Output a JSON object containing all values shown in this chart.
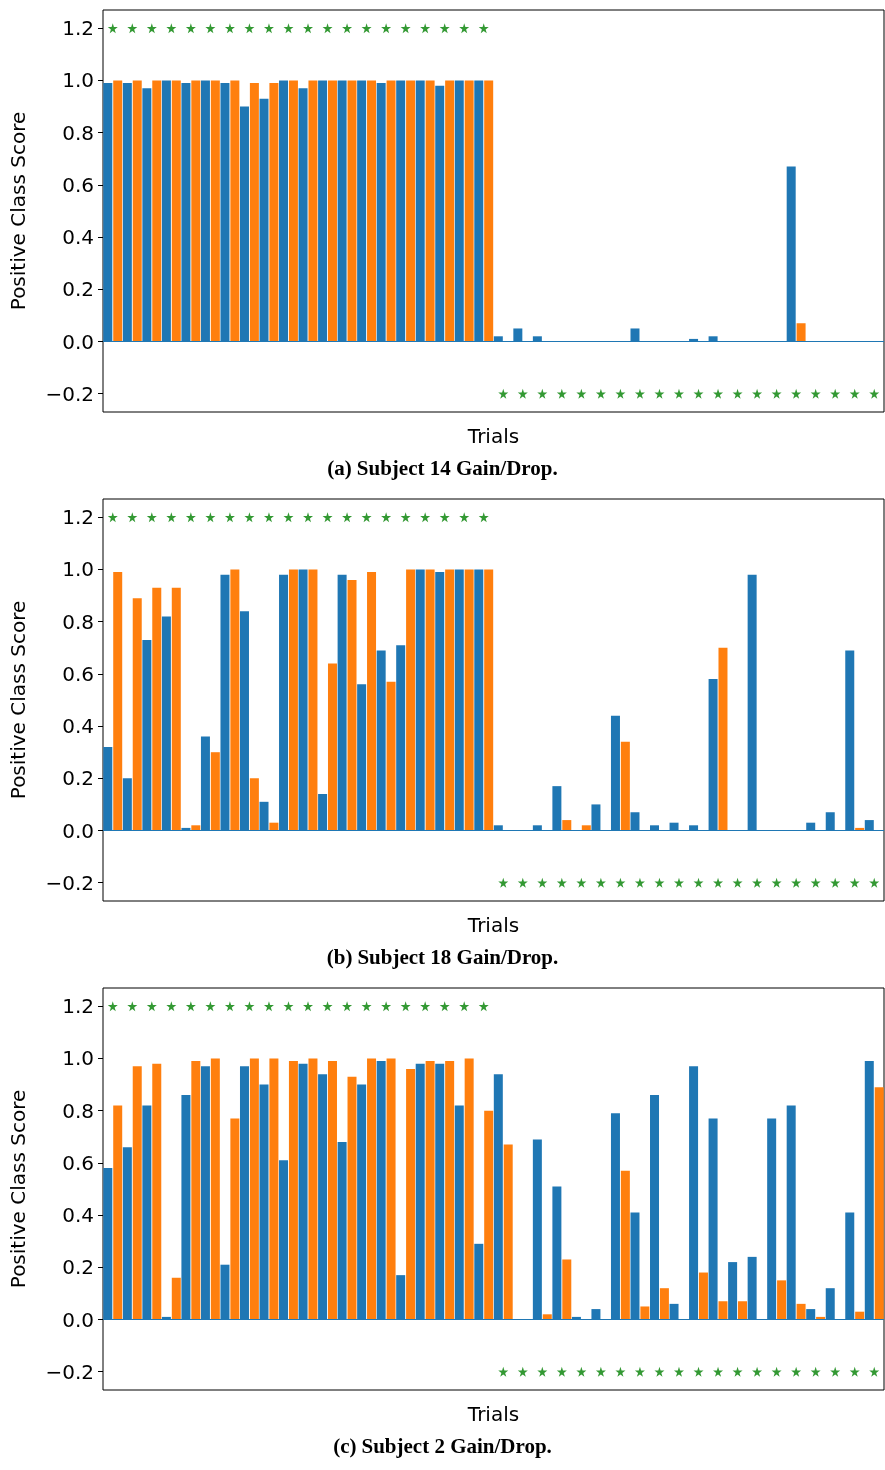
{
  "chart_data": [
    {
      "type": "bar",
      "title": "(a) Subject 14 Gain/Drop.",
      "xlabel": "Trials",
      "ylabel": "Positive Class Score",
      "tick_labels": "y",
      "categories": [
        null,
        null,
        null,
        null,
        null,
        null,
        null,
        null,
        null,
        null,
        null,
        null,
        null,
        null,
        null,
        null,
        null,
        null,
        null,
        null,
        null,
        null,
        null,
        null,
        null,
        null,
        null,
        null,
        null,
        null,
        null,
        null,
        null,
        null,
        null,
        null,
        null,
        null,
        null,
        null
      ],
      "ylim": [
        -0.27,
        1.27
      ],
      "yticks": [
        {
          "value": -0.2,
          "label": "−0.2"
        },
        {
          "value": 0,
          "label": "0.0"
        },
        0.2,
        0.4,
        0.6,
        0.8,
        {
          "value": 1,
          "label": "1.0"
        },
        1.2
      ],
      "ref_lines": [
        {
          "axis": "y",
          "value": 0,
          "color": "#1f77b4"
        }
      ],
      "series": [
        {
          "color": "#1f77b4",
          "values": [
            0.99,
            0.99,
            0.97,
            1.0,
            0.99,
            1.0,
            0.99,
            0.9,
            0.93,
            1.0,
            0.97,
            1.0,
            1.0,
            1.0,
            0.99,
            1.0,
            1.0,
            0.98,
            1.0,
            1.0,
            0.02,
            0.05,
            0.02,
            0,
            0,
            0,
            0,
            0.05,
            0,
            0,
            0.01,
            0.02,
            0,
            0,
            0,
            0.67,
            0,
            0,
            0,
            0
          ]
        },
        {
          "color": "#ff7f0e",
          "values": [
            1.0,
            1.0,
            1.0,
            1.0,
            1.0,
            1.0,
            1.0,
            0.99,
            0.99,
            1.0,
            1.0,
            1.0,
            1.0,
            1.0,
            1.0,
            1.0,
            1.0,
            1.0,
            1.0,
            1.0,
            0,
            0,
            0,
            0,
            0,
            0,
            0,
            0,
            0,
            0,
            0,
            0,
            0,
            0,
            0,
            0.07,
            0,
            0,
            0,
            0
          ]
        },
        {
          "type": "scatter",
          "marker": "star",
          "color": "#008000",
          "values": [
            1.2,
            1.2,
            1.2,
            1.2,
            1.2,
            1.2,
            1.2,
            1.2,
            1.2,
            1.2,
            1.2,
            1.2,
            1.2,
            1.2,
            1.2,
            1.2,
            1.2,
            1.2,
            1.2,
            1.2,
            -0.2,
            -0.2,
            -0.2,
            -0.2,
            -0.2,
            -0.2,
            -0.2,
            -0.2,
            -0.2,
            -0.2,
            -0.2,
            -0.2,
            -0.2,
            -0.2,
            -0.2,
            -0.2,
            -0.2,
            -0.2,
            -0.2,
            -0.2
          ]
        }
      ]
    },
    {
      "type": "bar",
      "title": "(b) Subject 18 Gain/Drop.",
      "xlabel": "Trials",
      "ylabel": "Positive Class Score",
      "tick_labels": "y",
      "categories": [
        null,
        null,
        null,
        null,
        null,
        null,
        null,
        null,
        null,
        null,
        null,
        null,
        null,
        null,
        null,
        null,
        null,
        null,
        null,
        null,
        null,
        null,
        null,
        null,
        null,
        null,
        null,
        null,
        null,
        null,
        null,
        null,
        null,
        null,
        null,
        null,
        null,
        null,
        null,
        null
      ],
      "ylim": [
        -0.27,
        1.27
      ],
      "yticks": [
        {
          "value": -0.2,
          "label": "−0.2"
        },
        {
          "value": 0,
          "label": "0.0"
        },
        0.2,
        0.4,
        0.6,
        0.8,
        {
          "value": 1,
          "label": "1.0"
        },
        1.2
      ],
      "ref_lines": [
        {
          "axis": "y",
          "value": 0,
          "color": "#1f77b4"
        }
      ],
      "series": [
        {
          "color": "#1f77b4",
          "values": [
            0.32,
            0.2,
            0.73,
            0.82,
            0.01,
            0.36,
            0.98,
            0.84,
            0.11,
            0.98,
            1.0,
            0.14,
            0.98,
            0.56,
            0.69,
            0.71,
            1.0,
            0.99,
            1.0,
            1.0,
            0.02,
            0,
            0.02,
            0.17,
            0,
            0.1,
            0.44,
            0.07,
            0.02,
            0.03,
            0.02,
            0.58,
            0,
            0.98,
            0,
            0,
            0.03,
            0.07,
            0.69,
            0.04
          ]
        },
        {
          "color": "#ff7f0e",
          "values": [
            0.99,
            0.89,
            0.93,
            0.93,
            0.02,
            0.3,
            1.0,
            0.2,
            0.03,
            1.0,
            1.0,
            0.64,
            0.96,
            0.99,
            0.57,
            1.0,
            1.0,
            1.0,
            1.0,
            1.0,
            0,
            0,
            0,
            0.04,
            0.02,
            0,
            0.34,
            0,
            0,
            0,
            0,
            0.7,
            0,
            0,
            0,
            0,
            0,
            0,
            0.01,
            0
          ]
        },
        {
          "type": "scatter",
          "marker": "star",
          "color": "#008000",
          "values": [
            1.2,
            1.2,
            1.2,
            1.2,
            1.2,
            1.2,
            1.2,
            1.2,
            1.2,
            1.2,
            1.2,
            1.2,
            1.2,
            1.2,
            1.2,
            1.2,
            1.2,
            1.2,
            1.2,
            1.2,
            -0.2,
            -0.2,
            -0.2,
            -0.2,
            -0.2,
            -0.2,
            -0.2,
            -0.2,
            -0.2,
            -0.2,
            -0.2,
            -0.2,
            -0.2,
            -0.2,
            -0.2,
            -0.2,
            -0.2,
            -0.2,
            -0.2,
            -0.2
          ]
        }
      ]
    },
    {
      "type": "bar",
      "title": "(c) Subject 2 Gain/Drop.",
      "xlabel": "Trials",
      "ylabel": "Positive Class Score",
      "tick_labels": "y",
      "categories": [
        null,
        null,
        null,
        null,
        null,
        null,
        null,
        null,
        null,
        null,
        null,
        null,
        null,
        null,
        null,
        null,
        null,
        null,
        null,
        null,
        null,
        null,
        null,
        null,
        null,
        null,
        null,
        null,
        null,
        null,
        null,
        null,
        null,
        null,
        null,
        null,
        null,
        null,
        null,
        null
      ],
      "ylim": [
        -0.27,
        1.27
      ],
      "yticks": [
        {
          "value": -0.2,
          "label": "−0.2"
        },
        {
          "value": 0,
          "label": "0.0"
        },
        0.2,
        0.4,
        0.6,
        0.8,
        {
          "value": 1,
          "label": "1.0"
        },
        1.2
      ],
      "ref_lines": [
        {
          "axis": "y",
          "value": 0,
          "color": "#1f77b4"
        }
      ],
      "series": [
        {
          "color": "#1f77b4",
          "values": [
            0.58,
            0.66,
            0.82,
            0.01,
            0.86,
            0.97,
            0.21,
            0.97,
            0.9,
            0.61,
            0.98,
            0.94,
            0.68,
            0.9,
            0.99,
            0.17,
            0.98,
            0.98,
            0.82,
            0.29,
            0.94,
            0,
            0.69,
            0.51,
            0.01,
            0.04,
            0.79,
            0.41,
            0.86,
            0.06,
            0.97,
            0.77,
            0.22,
            0.24,
            0.77,
            0.82,
            0.04,
            0.12,
            0.41,
            0.99
          ]
        },
        {
          "color": "#ff7f0e",
          "values": [
            0.82,
            0.97,
            0.98,
            0.16,
            0.99,
            1.0,
            0.77,
            1.0,
            1.0,
            0.99,
            1.0,
            0.99,
            0.93,
            1.0,
            1.0,
            0.96,
            0.99,
            0.99,
            1.0,
            0.8,
            0.67,
            0,
            0.02,
            0.23,
            0,
            0,
            0.57,
            0.05,
            0.12,
            0,
            0.18,
            0.07,
            0.07,
            0,
            0.15,
            0.06,
            0.01,
            0,
            0.03,
            0.89
          ]
        },
        {
          "type": "scatter",
          "marker": "star",
          "color": "#008000",
          "values": [
            1.2,
            1.2,
            1.2,
            1.2,
            1.2,
            1.2,
            1.2,
            1.2,
            1.2,
            1.2,
            1.2,
            1.2,
            1.2,
            1.2,
            1.2,
            1.2,
            1.2,
            1.2,
            1.2,
            1.2,
            -0.2,
            -0.2,
            -0.2,
            -0.2,
            -0.2,
            -0.2,
            -0.2,
            -0.2,
            -0.2,
            -0.2,
            -0.2,
            -0.2,
            -0.2,
            -0.2,
            -0.2,
            -0.2,
            -0.2,
            -0.2,
            -0.2,
            -0.2
          ]
        }
      ]
    }
  ]
}
